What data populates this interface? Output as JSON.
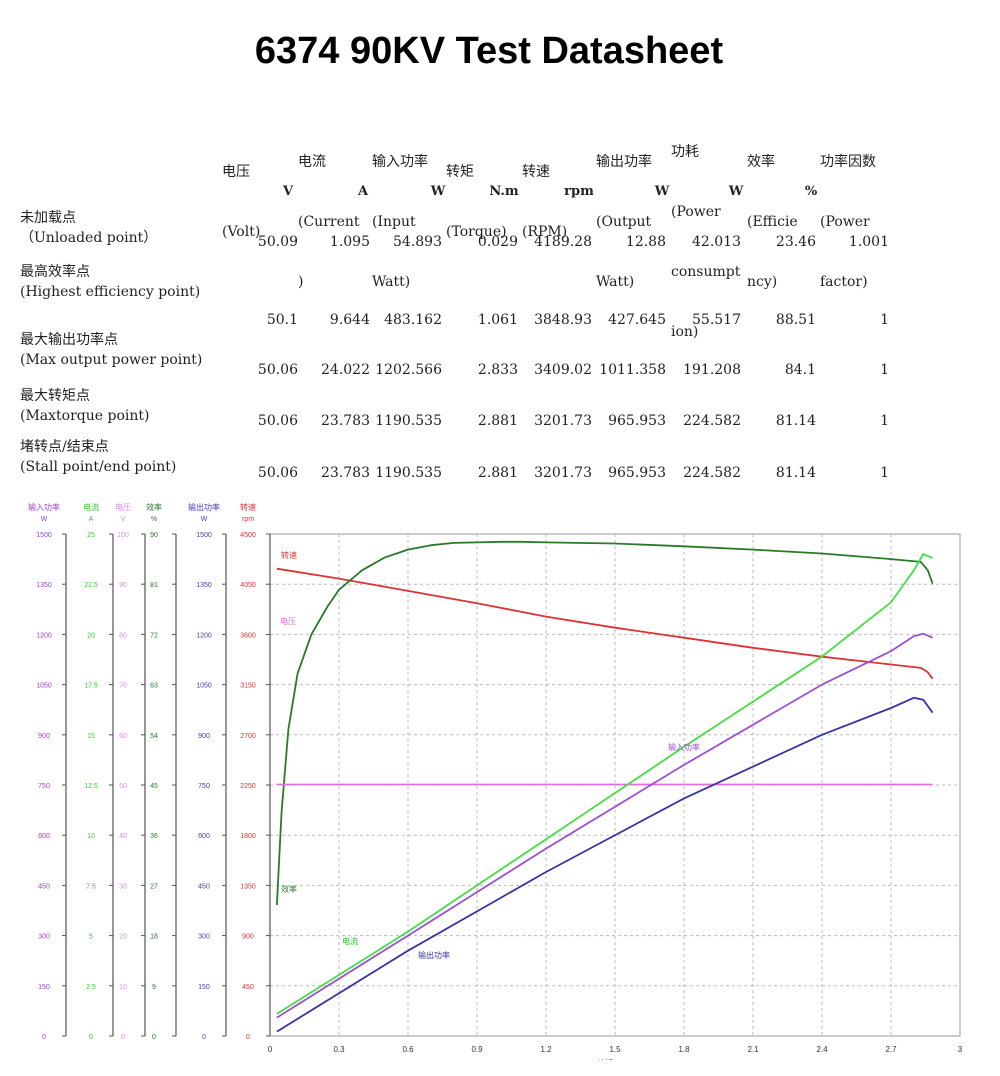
{
  "title": "6374 90KV Test Datasheet",
  "table": {
    "headers": [
      {
        "lines": [
          "电压",
          "(Volt)"
        ]
      },
      {
        "lines": [
          "电流",
          "(Current",
          ")"
        ]
      },
      {
        "lines": [
          "输入功率",
          "(Input",
          "Watt)"
        ]
      },
      {
        "lines": [
          "转矩",
          "(Torque)"
        ]
      },
      {
        "lines": [
          "转速",
          "(RPM)"
        ]
      },
      {
        "lines": [
          "输出功率",
          "(Output",
          "Watt)"
        ]
      },
      {
        "lines": [
          "功耗",
          "(Power",
          "consumpt",
          "ion)"
        ]
      },
      {
        "lines": [
          "效率",
          "(Efficie",
          "ncy)"
        ]
      },
      {
        "lines": [
          "功率因数",
          "(Power",
          "factor)"
        ]
      }
    ],
    "units": [
      "V",
      "A",
      "W",
      "N.m",
      "rpm",
      "W",
      "W",
      "%"
    ],
    "rows": [
      {
        "label_cn": "未加载点",
        "label_en": "（Unloaded point）",
        "values": [
          "50.09",
          "1.095",
          "54.893",
          "0.029",
          "4189.28",
          "12.88",
          "42.013",
          "23.46",
          "1.001"
        ]
      },
      {
        "label_cn": "最高效率点",
        "label_en": "(Highest efficiency point)",
        "values": [
          "50.1",
          "9.644",
          "483.162",
          "1.061",
          "3848.93",
          "427.645",
          "55.517",
          "88.51",
          "1"
        ]
      },
      {
        "label_cn": "最大输出功率点",
        "label_en": "(Max output power point)",
        "values": [
          "50.06",
          "24.022",
          "1202.566",
          "2.833",
          "3409.02",
          "1011.358",
          "191.208",
          "84.1",
          "1"
        ]
      },
      {
        "label_cn": "最大转矩点",
        "label_en": "(Maxtorque point)",
        "values": [
          "50.06",
          "23.783",
          "1190.535",
          "2.881",
          "3201.73",
          "965.953",
          "224.582",
          "81.14",
          "1"
        ]
      },
      {
        "label_cn": "堵转点/结束点",
        "label_en": "(Stall point/end point)",
        "values": [
          "50.06",
          "23.783",
          "1190.535",
          "2.881",
          "3201.73",
          "965.953",
          "224.582",
          "81.14",
          "1"
        ]
      }
    ]
  },
  "chart_data": {
    "type": "line",
    "xlabel": "转矩(N.m)",
    "xlim": [
      0,
      3
    ],
    "xticks": [
      "0",
      "0.3",
      "0.6",
      "0.9",
      "1.2",
      "1.5",
      "1.8",
      "2.1",
      "2.4",
      "2.7",
      "3"
    ],
    "grid": true,
    "axes": [
      {
        "name": "输入功率",
        "unit": "W",
        "color": "#a040d0",
        "ticks": [
          "1500",
          "1350",
          "1200",
          "1050",
          "900",
          "750",
          "600",
          "450",
          "300",
          "150",
          "0"
        ]
      },
      {
        "name": "电流",
        "unit": "A",
        "color": "#33cc33",
        "ticks": [
          "25",
          "22.5",
          "20",
          "17.5",
          "15",
          "12.5",
          "10",
          "7.5",
          "5",
          "2.5",
          "0"
        ]
      },
      {
        "name": "电压",
        "unit": "V",
        "color": "#d890e0",
        "ticks": [
          "100",
          "90",
          "80",
          "70",
          "60",
          "50",
          "40",
          "30",
          "20",
          "10",
          "0"
        ]
      },
      {
        "name": "效率",
        "unit": "%",
        "color": "#2a7a2a",
        "ticks": [
          "90",
          "81",
          "72",
          "63",
          "54",
          "45",
          "36",
          "27",
          "18",
          "9",
          "0"
        ]
      },
      {
        "name": "输出功率",
        "unit": "W",
        "color": "#4040b0",
        "ticks": [
          "1500",
          "1350",
          "1200",
          "1050",
          "900",
          "750",
          "600",
          "450",
          "300",
          "150",
          "0"
        ]
      },
      {
        "name": "转速",
        "unit": "rpm",
        "color": "#dd3333",
        "ticks": [
          "4500",
          "4050",
          "3600",
          "3150",
          "2700",
          "2250",
          "1800",
          "1350",
          "900",
          "450",
          "0"
        ]
      }
    ],
    "series": [
      {
        "name": "转速",
        "axis": 5,
        "color": "#dd3333",
        "x": [
          0.03,
          0.3,
          0.6,
          0.9,
          1.2,
          1.5,
          1.8,
          2.1,
          2.4,
          2.7,
          2.83,
          2.86,
          2.881
        ],
        "y": [
          4189,
          4100,
          3990,
          3880,
          3760,
          3660,
          3570,
          3480,
          3400,
          3330,
          3300,
          3260,
          3202
        ]
      },
      {
        "name": "效率",
        "axis": 3,
        "color": "#2a7a2a",
        "x": [
          0.03,
          0.05,
          0.08,
          0.12,
          0.18,
          0.25,
          0.3,
          0.4,
          0.5,
          0.6,
          0.7,
          0.8,
          0.9,
          1.0,
          1.1,
          1.2,
          1.5,
          1.8,
          2.1,
          2.4,
          2.7,
          2.83,
          2.86,
          2.881
        ],
        "y": [
          23.5,
          40,
          55,
          65,
          72,
          77,
          80,
          83.5,
          85.8,
          87.2,
          88,
          88.4,
          88.5,
          88.6,
          88.6,
          88.5,
          88.3,
          87.8,
          87.2,
          86.5,
          85.5,
          85.0,
          83.5,
          81.1
        ]
      },
      {
        "name": "电压",
        "axis": 2,
        "color": "#e070e0",
        "x": [
          0.03,
          2.881
        ],
        "y": [
          50.1,
          50.1
        ]
      },
      {
        "name": "电流",
        "axis": 1,
        "color": "#44dd44",
        "x": [
          0.03,
          0.6,
          1.2,
          1.8,
          2.4,
          2.7,
          2.8,
          2.84,
          2.881
        ],
        "y": [
          1.1,
          5.2,
          9.8,
          14.4,
          18.9,
          21.6,
          23.2,
          24.0,
          23.8
        ]
      },
      {
        "name": "输入功率",
        "axis": 0,
        "color": "#9b4fd6",
        "x": [
          0.03,
          0.6,
          1.2,
          1.8,
          2.4,
          2.7,
          2.8,
          2.84,
          2.881
        ],
        "y": [
          55,
          300,
          560,
          810,
          1050,
          1150,
          1195,
          1202,
          1190
        ]
      },
      {
        "name": "输出功率",
        "axis": 4,
        "color": "#3535a5",
        "x": [
          0.03,
          0.6,
          1.2,
          1.8,
          2.4,
          2.7,
          2.8,
          2.84,
          2.881
        ],
        "y": [
          13,
          255,
          490,
          710,
          900,
          980,
          1011,
          1005,
          966
        ]
      }
    ],
    "annotations": [
      {
        "text": "转速",
        "color": "#dd3333"
      },
      {
        "text": "电压",
        "color": "#e070e0"
      },
      {
        "text": "效率",
        "color": "#2a7a2a"
      },
      {
        "text": "电流",
        "color": "#33bb33"
      },
      {
        "text": "输入功率",
        "color": "#9b4fd6"
      },
      {
        "text": "输出功率",
        "color": "#3535a5"
      }
    ]
  }
}
